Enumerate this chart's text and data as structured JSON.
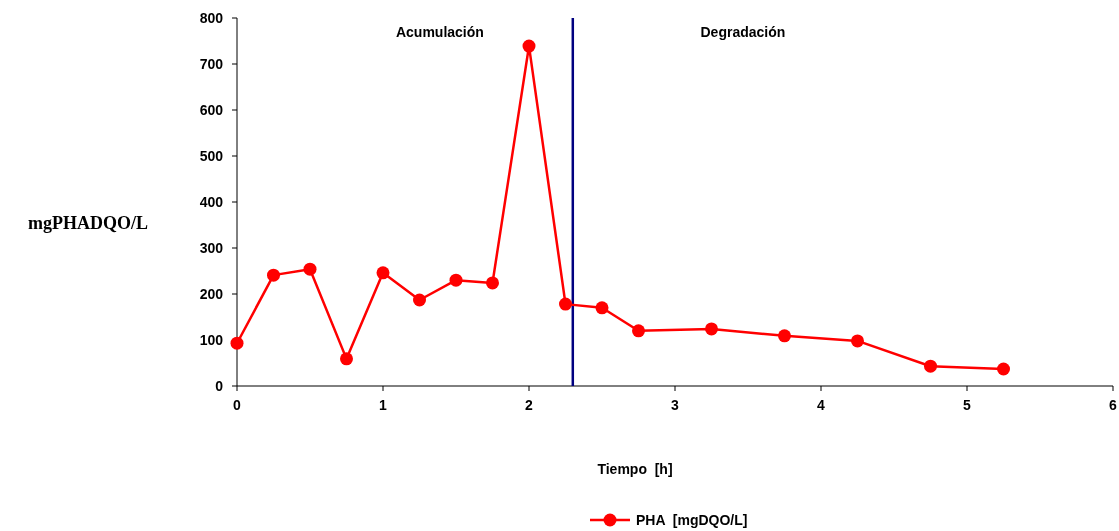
{
  "chart_data": {
    "type": "line",
    "xlabel": "Tiempo  [h]",
    "ylabel": "mgPHADQO/L",
    "x": [
      0,
      0.25,
      0.5,
      0.75,
      1,
      1.25,
      1.5,
      1.75,
      2,
      2.25,
      2.5,
      2.75,
      3.25,
      3.75,
      4.25,
      4.75,
      5.25
    ],
    "series": [
      {
        "name": "PHA  [mgDQO/L]",
        "color": "#ff0000",
        "values": [
          93,
          241,
          254,
          59,
          246,
          187,
          230,
          224,
          739,
          178,
          170,
          120,
          124,
          109,
          98,
          43,
          37
        ]
      }
    ],
    "xlim": [
      0,
      6
    ],
    "xticks": [
      0,
      1,
      2,
      3,
      4,
      5,
      6
    ],
    "ylim": [
      0,
      800
    ],
    "yticks": [
      0,
      100,
      200,
      300,
      400,
      500,
      600,
      700,
      800
    ],
    "ref_lines": [
      {
        "axis": "x",
        "value": 2.3,
        "color": "#000080"
      }
    ],
    "annotations": [
      "Acumulación",
      "Degradación"
    ],
    "marker": "circle",
    "line_style": "solid",
    "grid": false,
    "legend": "bottom"
  }
}
